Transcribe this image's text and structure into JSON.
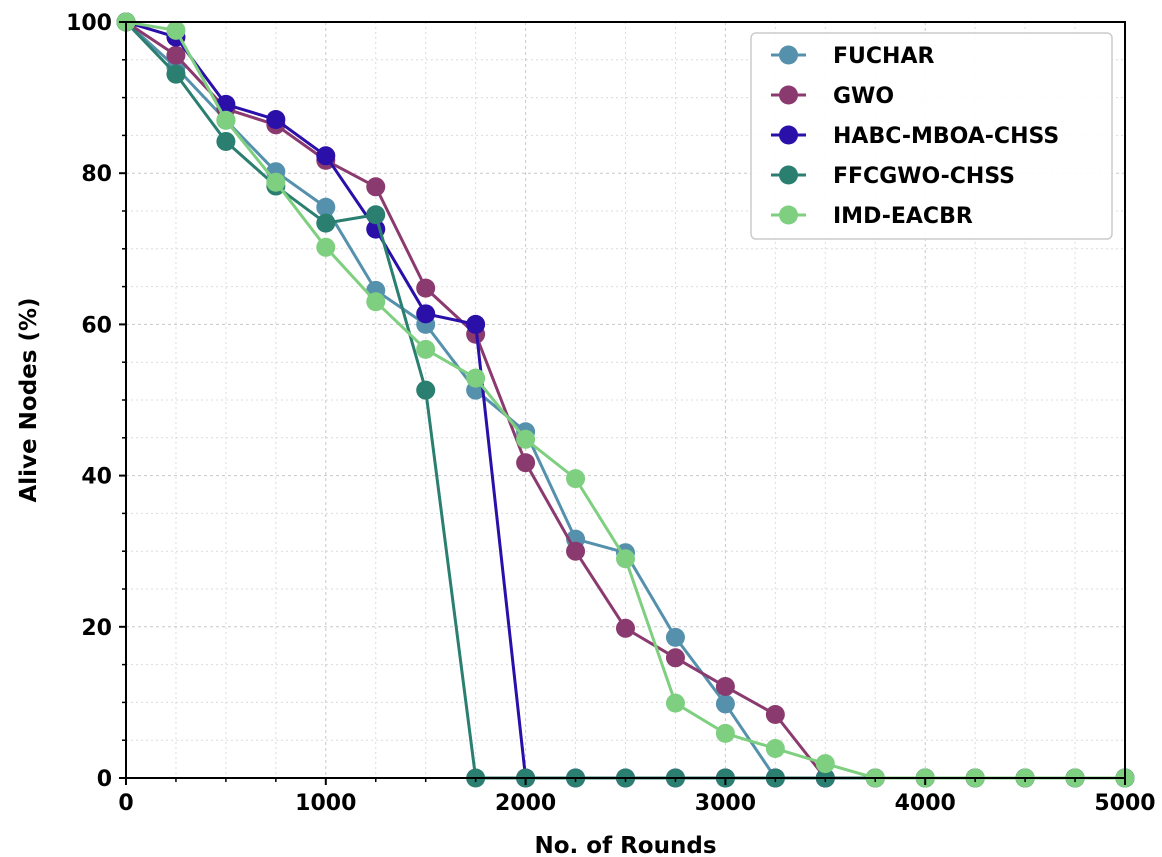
{
  "chart_data": {
    "type": "line",
    "title": "",
    "xlabel": "No. of Rounds",
    "ylabel": "Alive Nodes (%)",
    "xlim": [
      0,
      5000
    ],
    "ylim": [
      0,
      100
    ],
    "xticks": [
      "0",
      "1000",
      "2000",
      "3000",
      "4000",
      "5000"
    ],
    "yticks": [
      "0",
      "20",
      "40",
      "60",
      "80",
      "100"
    ],
    "grid": true,
    "legend_position": "top-right",
    "x": [
      0,
      250,
      500,
      750,
      1000,
      1250,
      1500,
      1750,
      2000,
      2250,
      2500,
      2750,
      3000,
      3250,
      3500,
      3750,
      4000,
      4250,
      4500,
      4750,
      5000
    ],
    "series": [
      {
        "name": "FUCHAR",
        "color": "#5591ad",
        "values": [
          100,
          94,
          87,
          80.2,
          75.5,
          64.5,
          60,
          51.3,
          45.8,
          31.6,
          29.8,
          18.6,
          9.8,
          0,
          0,
          0,
          0,
          0,
          0,
          0,
          0
        ]
      },
      {
        "name": "GWO",
        "color": "#8a3a6e",
        "values": [
          100,
          95.6,
          88.5,
          86.4,
          81.7,
          78.2,
          64.8,
          58.7,
          41.7,
          30,
          19.8,
          15.9,
          12.1,
          8.4,
          0,
          0,
          0,
          0,
          0,
          0,
          0
        ]
      },
      {
        "name": "HABC-MBOA-CHSS",
        "color": "#2a0fa8",
        "values": [
          100,
          98,
          89.1,
          87.1,
          82.3,
          72.6,
          61.4,
          60,
          0,
          0,
          0,
          0,
          0,
          0,
          0,
          0,
          0,
          0,
          0,
          0,
          0
        ]
      },
      {
        "name": "FFCGWO-CHSS",
        "color": "#2b7f70",
        "values": [
          100,
          93.1,
          84.2,
          78.3,
          73.4,
          74.5,
          51.3,
          0,
          0,
          0,
          0,
          0,
          0,
          0,
          0,
          0,
          0,
          0,
          0,
          0,
          0
        ]
      },
      {
        "name": "IMD-EACBR",
        "color": "#7ecf80",
        "values": [
          100,
          98.9,
          87,
          78.8,
          70.2,
          63,
          56.7,
          52.9,
          44.8,
          39.6,
          29,
          9.9,
          5.9,
          3.9,
          1.9,
          0,
          0,
          0,
          0,
          0,
          0
        ]
      }
    ]
  }
}
